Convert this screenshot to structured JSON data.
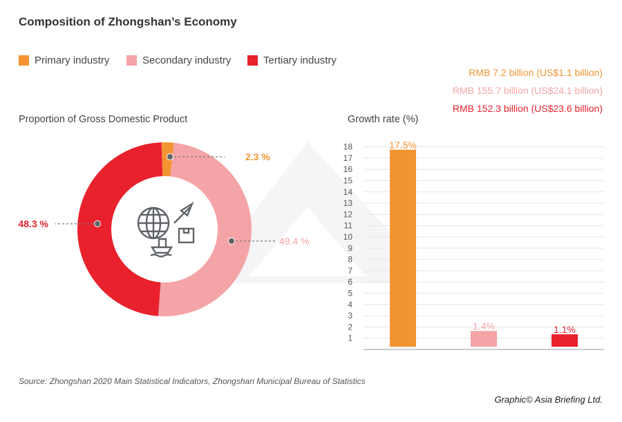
{
  "title": "Composition of Zhongshan’s Economy",
  "legend": [
    {
      "label": "Primary industry",
      "color": "#f39433"
    },
    {
      "label": "Secondary industry",
      "color": "#f4a4a7"
    },
    {
      "label": "Tertiary industry",
      "color": "#e8212d"
    }
  ],
  "values_text": [
    {
      "label": "RMB 7.2 billion (US$1.1 billion)",
      "color": "#f39433"
    },
    {
      "label": "RMB 155.7 billion (US$24.1 billion)",
      "color": "#f4a4a7"
    },
    {
      "label": "RMB 152.3 billion (US$23.6 billion)",
      "color": "#e8212d"
    }
  ],
  "chart_data": [
    {
      "type": "pie",
      "title": "Proportion of Gross Domestic Product",
      "donut": true,
      "center_icon": "globe-plane-ship-icon",
      "categories": [
        "Primary industry",
        "Secondary industry",
        "Tertiary industry"
      ],
      "values": [
        2.3,
        49.4,
        48.3
      ],
      "labels": [
        "2.3 %",
        "49.4 %",
        "48.3 %"
      ],
      "colors": [
        "#f39433",
        "#f4a4a7",
        "#e8212d"
      ]
    },
    {
      "type": "bar",
      "title": "Growth rate (%)",
      "categories": [
        "Primary industry",
        "Secondary industry",
        "Tertiary industry"
      ],
      "values": [
        17.5,
        1.4,
        1.1
      ],
      "labels": [
        "17.5%",
        "1.4%",
        "1.1%"
      ],
      "colors": [
        "#f39433",
        "#f4a4a7",
        "#e8212d"
      ],
      "ylim": [
        0,
        18
      ],
      "yticks": [
        1,
        2,
        3,
        4,
        5,
        6,
        7,
        8,
        9,
        10,
        11,
        12,
        13,
        14,
        15,
        16,
        17,
        18
      ],
      "grid": true
    }
  ],
  "source": "Source: Zhongshan 2020 Main Statistical Indicators, Zhongshan Municipal Bureau of Statistics",
  "credit": "Graphic© Asia Briefing Ltd."
}
